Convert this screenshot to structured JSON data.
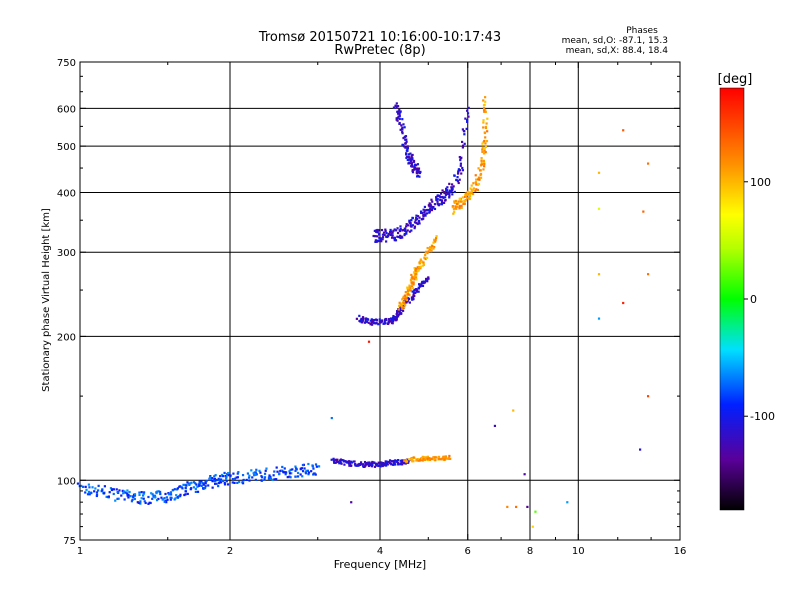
{
  "chart_data": {
    "type": "scatter",
    "title": "Tromsø 20150721 10:16:00-10:17:43",
    "subtitle": "RwPretec (8p)",
    "xlabel": "Frequency [MHz]",
    "ylabel": "Stationary phase Virtual Height [km]",
    "x_scale": "log",
    "y_scale": "log",
    "xlim": [
      1,
      16
    ],
    "ylim": [
      75,
      750
    ],
    "x_ticks": [
      1,
      2,
      4,
      6,
      8,
      10,
      16
    ],
    "x_tick_labels": [
      "1",
      "2",
      "4",
      "6",
      "8",
      "10",
      "16"
    ],
    "x_grid": [
      2,
      4,
      6,
      8,
      10
    ],
    "y_ticks": [
      75,
      100,
      200,
      300,
      400,
      500,
      600,
      750
    ],
    "y_tick_labels": [
      "75",
      "100",
      "200",
      "300",
      "400",
      "500",
      "600",
      "750"
    ],
    "y_grid": [
      100,
      200,
      300,
      400,
      500,
      600
    ],
    "grid": true,
    "stats": {
      "heading": "Phases",
      "line_o": "mean, sd,O: -87.1, 15.3",
      "line_x": "mean, sd,X: 88.4, 18.4"
    },
    "colorbar": {
      "label": "[deg]",
      "min": -180,
      "max": 180,
      "ticks": [
        100,
        0,
        -100
      ],
      "tick_labels": [
        "100",
        "0",
        "-100"
      ],
      "colormap": "rainbow"
    },
    "segments": [
      {
        "x": [
          1.0,
          1.1,
          1.2,
          1.3,
          1.4,
          1.5,
          1.6,
          1.7,
          1.8,
          1.9,
          2.0,
          2.2,
          2.4,
          2.6,
          2.8,
          3.0
        ],
        "y": [
          96,
          95,
          93,
          92,
          92,
          93,
          95,
          97,
          99,
          100,
          101,
          102,
          103,
          104,
          105,
          106
        ],
        "phase": -80,
        "spread": 0.03
      },
      {
        "x": [
          3.2,
          3.4,
          3.6,
          3.8,
          4.0,
          4.2,
          4.4,
          4.6
        ],
        "y": [
          110,
          109,
          108,
          108,
          108,
          109,
          109,
          110
        ],
        "phase": -115,
        "spread": 0.012
      },
      {
        "x": [
          4.5,
          4.8,
          5.0,
          5.3,
          5.5
        ],
        "y": [
          110,
          111,
          111,
          111,
          112
        ],
        "phase": 110,
        "spread": 0.01
      },
      {
        "x": [
          3.6,
          3.8,
          4.0,
          4.2,
          4.3,
          4.4,
          4.6,
          4.8,
          5.0
        ],
        "y": [
          218,
          215,
          214,
          215,
          220,
          228,
          240,
          255,
          265
        ],
        "phase": -115,
        "spread": 0.015
      },
      {
        "x": [
          4.4,
          4.5,
          4.6,
          4.7,
          4.8,
          5.0,
          5.2
        ],
        "y": [
          230,
          240,
          255,
          270,
          280,
          300,
          320
        ],
        "phase": 110,
        "spread": 0.02
      },
      {
        "x": [
          3.9,
          4.0,
          4.2,
          4.4,
          4.6,
          4.8,
          5.0,
          5.2,
          5.4,
          5.6,
          5.8,
          6.0
        ],
        "y": [
          325,
          325,
          326,
          330,
          340,
          355,
          370,
          385,
          395,
          410,
          450,
          620
        ],
        "phase": -115,
        "spread": 0.03
      },
      {
        "x": [
          4.3,
          4.4,
          4.5,
          4.6,
          4.7,
          4.8
        ],
        "y": [
          600,
          560,
          500,
          470,
          450,
          440
        ],
        "phase": -115,
        "spread": 0.03
      },
      {
        "x": [
          5.6,
          5.8,
          6.0,
          6.2,
          6.4,
          6.5,
          6.5
        ],
        "y": [
          370,
          380,
          390,
          410,
          450,
          520,
          640
        ],
        "phase": 110,
        "spread": 0.025
      }
    ],
    "isolated_points": [
      {
        "x": 11.0,
        "y": 440,
        "phase": 100
      },
      {
        "x": 12.3,
        "y": 540,
        "phase": 140
      },
      {
        "x": 13.8,
        "y": 460,
        "phase": 130
      },
      {
        "x": 11.0,
        "y": 370,
        "phase": 60
      },
      {
        "x": 13.5,
        "y": 365,
        "phase": 135
      },
      {
        "x": 11.0,
        "y": 270,
        "phase": 100
      },
      {
        "x": 13.8,
        "y": 270,
        "phase": 130
      },
      {
        "x": 12.3,
        "y": 235,
        "phase": 165
      },
      {
        "x": 11.0,
        "y": 218,
        "phase": -60
      },
      {
        "x": 13.8,
        "y": 150,
        "phase": 150
      },
      {
        "x": 13.3,
        "y": 116,
        "phase": -110
      },
      {
        "x": 7.4,
        "y": 140,
        "phase": 100
      },
      {
        "x": 6.8,
        "y": 130,
        "phase": -120
      },
      {
        "x": 7.8,
        "y": 103,
        "phase": -130
      },
      {
        "x": 7.2,
        "y": 88,
        "phase": 120
      },
      {
        "x": 7.5,
        "y": 88,
        "phase": 130
      },
      {
        "x": 7.9,
        "y": 88,
        "phase": -140
      },
      {
        "x": 8.2,
        "y": 86,
        "phase": 20
      },
      {
        "x": 9.5,
        "y": 90,
        "phase": -60
      },
      {
        "x": 8.1,
        "y": 80,
        "phase": 90
      },
      {
        "x": 3.2,
        "y": 135,
        "phase": -70
      },
      {
        "x": 3.5,
        "y": 90,
        "phase": -130
      },
      {
        "x": 3.8,
        "y": 195,
        "phase": 170
      }
    ]
  }
}
